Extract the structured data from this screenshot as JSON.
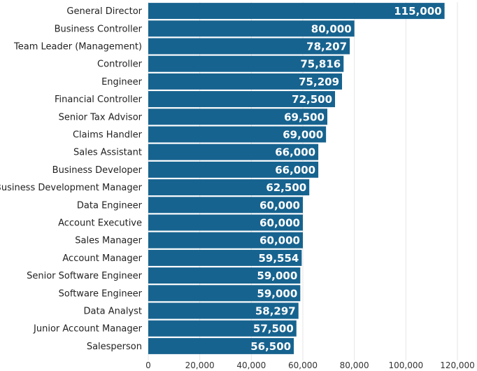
{
  "chart_data": {
    "type": "bar",
    "orientation": "horizontal",
    "title": "",
    "xlabel": "",
    "ylabel": "",
    "categories": [
      "General Director",
      "Business Controller",
      "Team Leader (Management)",
      "Controller",
      "Engineer",
      "Financial Controller",
      "Senior Tax Advisor",
      "Claims Handler",
      "Sales Assistant",
      "Business Developer",
      "Business Development Manager",
      "Data Engineer",
      "Account Executive",
      "Sales Manager",
      "Account Manager",
      "Senior Software Engineer",
      "Software Engineer",
      "Data Analyst",
      "Junior Account Manager",
      "Salesperson"
    ],
    "values": [
      115000,
      80000,
      78207,
      75816,
      75209,
      72500,
      69500,
      69000,
      66000,
      66000,
      62500,
      60000,
      60000,
      60000,
      59554,
      59000,
      59000,
      58297,
      57500,
      56500
    ],
    "data_labels": [
      "115,000",
      "80,000",
      "78,207",
      "75,816",
      "75,209",
      "72,500",
      "69,500",
      "69,000",
      "66,000",
      "66,000",
      "62,500",
      "60,000",
      "60,000",
      "60,000",
      "59,554",
      "59,000",
      "59,000",
      "58,297",
      "57,500",
      "56,500"
    ],
    "xlim": [
      0,
      120000
    ],
    "x_ticks": [
      0,
      20000,
      40000,
      60000,
      80000,
      100000,
      120000
    ],
    "x_tick_labels": [
      "0",
      "20,000",
      "40,000",
      "60,000",
      "80,000",
      "100,000",
      "120,000"
    ],
    "bar_color": "#17638f",
    "grid": true,
    "legend": "none"
  }
}
